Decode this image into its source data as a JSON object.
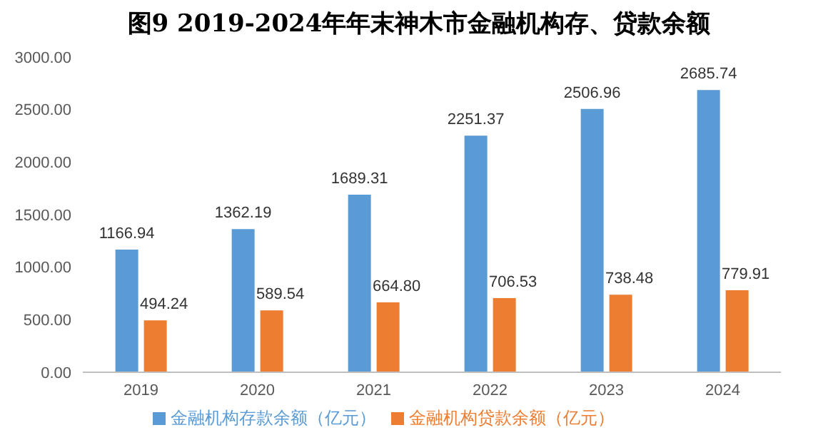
{
  "chart_data": {
    "type": "bar",
    "title": "图9 2019-2024年年末神木市金融机构存、贷款余额",
    "categories": [
      "2019",
      "2020",
      "2021",
      "2022",
      "2023",
      "2024"
    ],
    "series": [
      {
        "name": "金融机构存款余额（亿元）",
        "color": "#5b9bd5",
        "values": [
          1166.94,
          1362.19,
          1689.31,
          2251.37,
          2506.96,
          2685.74
        ],
        "value_labels": [
          "1166.94",
          "1362.19",
          "1689.31",
          "2251.37",
          "2506.96",
          "2685.74"
        ]
      },
      {
        "name": "金融机构贷款余额（亿元）",
        "color": "#ed7d31",
        "values": [
          494.24,
          589.54,
          664.8,
          706.53,
          738.48,
          779.91
        ],
        "value_labels": [
          "494.24",
          "589.54",
          "664.80",
          "706.53",
          "738.48",
          "779.91"
        ]
      }
    ],
    "ylim": [
      0,
      3000
    ],
    "yticks": [
      {
        "value": 0,
        "label": "0.00"
      },
      {
        "value": 500,
        "label": "500.00"
      },
      {
        "value": 1000,
        "label": "1000.00"
      },
      {
        "value": 1500,
        "label": "1500.00"
      },
      {
        "value": 2000,
        "label": "2000.00"
      },
      {
        "value": 2500,
        "label": "2500.00"
      },
      {
        "value": 3000,
        "label": "3000.00"
      }
    ],
    "grid": false,
    "legend": "bottom"
  }
}
